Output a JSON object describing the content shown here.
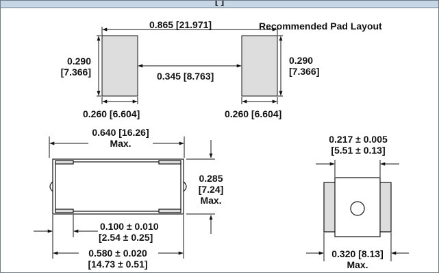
{
  "header": {
    "title": "[ ]"
  },
  "pad_layout": {
    "title": "Recommended Pad Layout",
    "overall_span": "0.865 [21.971]",
    "gap": "0.345 [8.763]",
    "left_height_in": "0.290",
    "left_height_mm": "[7.366]",
    "right_height_in": "0.290",
    "right_height_mm": "[7.366]",
    "left_width": "0.260 [6.604]",
    "right_width": "0.260 [6.604]"
  },
  "side_view": {
    "length_in": "0.640 [16.26]",
    "length_qual": "Max.",
    "height_in": "0.285",
    "height_mm": "[7.24]",
    "height_qual": "Max.",
    "terminal_in": "0.100 ± 0.010",
    "terminal_mm": "[2.54 ± 0.25]",
    "body_in": "0.580 ± 0.020",
    "body_mm": "[14.73 ± 0.51]"
  },
  "end_view": {
    "top_in": "0.217 ± 0.005",
    "top_mm": "[5.51 ± 0.13]",
    "width": "0.320 [8.13]",
    "width_qual": "Max."
  },
  "colors": {
    "pad_fill": "#dddddd",
    "header_fill": "#c6d6e4",
    "line": "#111111"
  }
}
